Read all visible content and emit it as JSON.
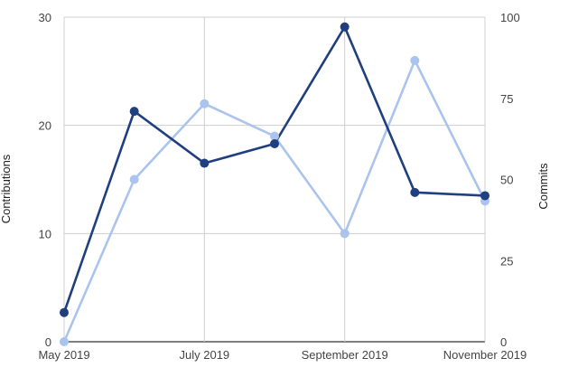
{
  "chart_data": {
    "type": "line",
    "title": "",
    "x": [
      "2019-05",
      "2019-06",
      "2019-07",
      "2019-08",
      "2019-09",
      "2019-10",
      "2019-11"
    ],
    "x_tick_labels": [
      "May 2019",
      "July 2019",
      "September 2019",
      "November 2019"
    ],
    "x_tick_values": [
      "2019-05",
      "2019-07",
      "2019-09",
      "2019-11"
    ],
    "y_left": {
      "label": "Contributions",
      "ylim": [
        0,
        30
      ],
      "ticks": [
        0,
        10,
        20,
        30
      ],
      "tick_labels": [
        "0",
        "10",
        "20",
        "30"
      ]
    },
    "y_right": {
      "label": "Commits",
      "ylim": [
        0,
        100
      ],
      "ticks": [
        0,
        25,
        50,
        75,
        100
      ],
      "tick_labels": [
        "0",
        "25",
        "50",
        "75",
        "100"
      ]
    },
    "grid": true,
    "legend": "none",
    "series": [
      {
        "axis": "left",
        "color": "#aac4ee",
        "values": [
          0,
          15,
          22,
          19,
          10,
          26,
          13
        ]
      },
      {
        "axis": "right",
        "color": "#1f3f7f",
        "values": [
          9,
          71,
          55,
          61,
          97,
          46,
          45
        ]
      }
    ]
  }
}
